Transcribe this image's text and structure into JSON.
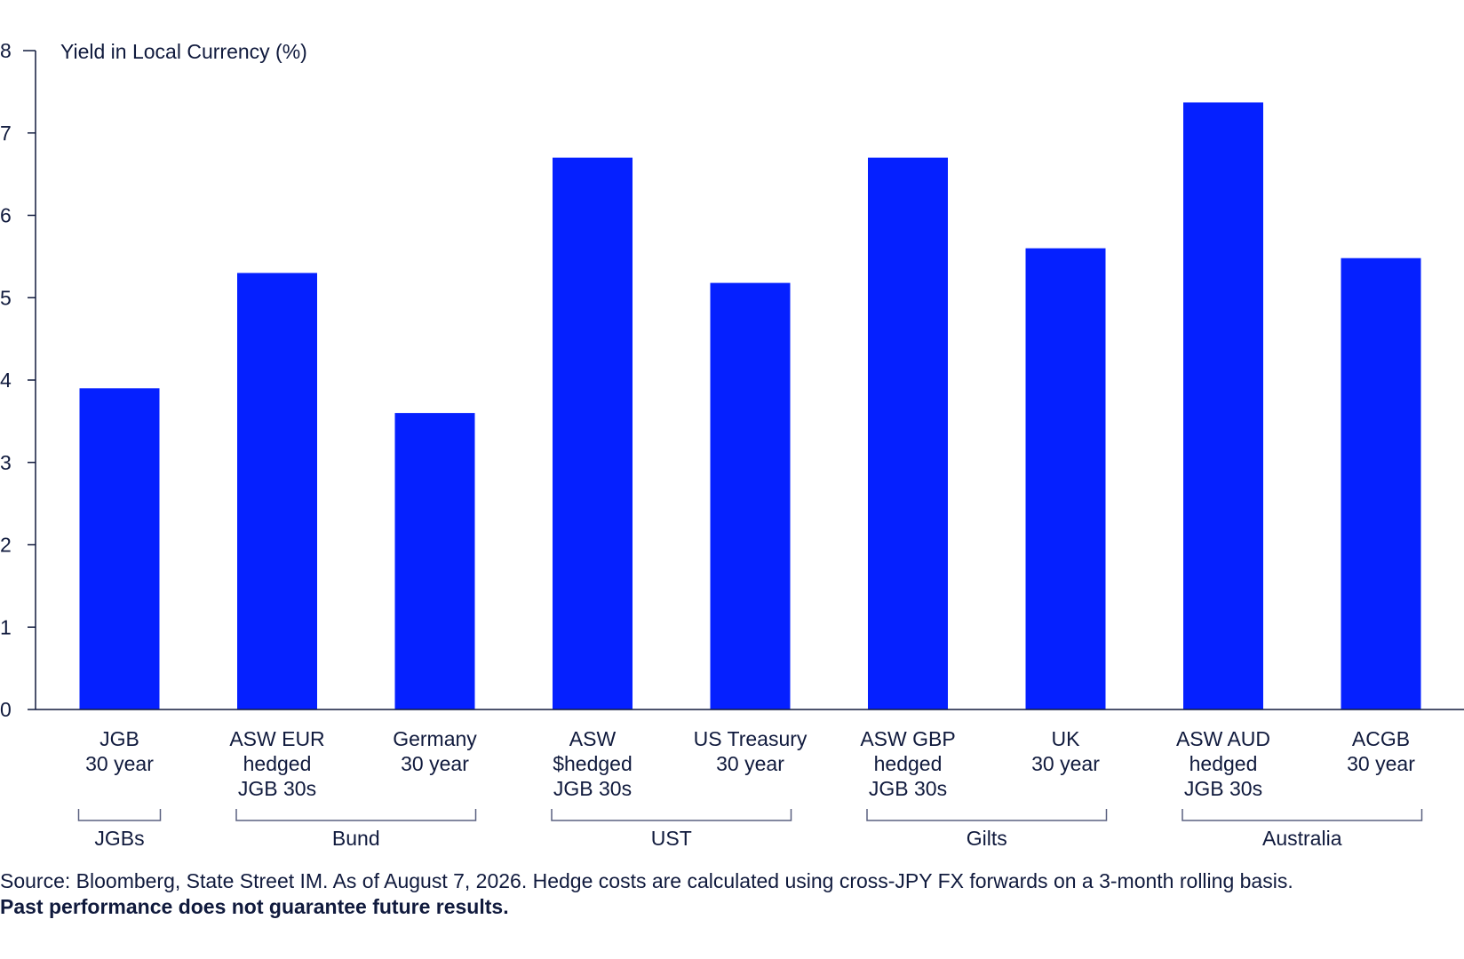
{
  "chart_data": {
    "type": "bar",
    "ylabel": "Yield in Local Currency (%)",
    "ylim": [
      0,
      8
    ],
    "yticks": [
      "0",
      "1",
      "2",
      "3",
      "4",
      "5",
      "6",
      "7",
      "8"
    ],
    "categories": [
      [
        "JGB",
        "30 year"
      ],
      [
        "ASW EUR",
        "hedged",
        "JGB 30s"
      ],
      [
        "Germany",
        "30 year"
      ],
      [
        "ASW",
        "$hedged",
        "JGB 30s"
      ],
      [
        "US Treasury",
        "30 year"
      ],
      [
        "ASW GBP",
        "hedged",
        "JGB 30s"
      ],
      [
        "UK",
        "30 year"
      ],
      [
        "ASW AUD",
        "hedged",
        "JGB 30s"
      ],
      [
        "ACGB",
        "30 year"
      ]
    ],
    "values": [
      3.9,
      5.3,
      3.6,
      6.7,
      5.18,
      6.7,
      5.6,
      7.37,
      5.48
    ],
    "groups": [
      {
        "label": "JGBs",
        "from": 0,
        "to": 0
      },
      {
        "label": "Bund",
        "from": 1,
        "to": 2
      },
      {
        "label": "UST",
        "from": 3,
        "to": 4
      },
      {
        "label": "Gilts",
        "from": 5,
        "to": 6
      },
      {
        "label": "Australia",
        "from": 7,
        "to": 8
      }
    ],
    "grid": false,
    "colors": {
      "bar": "#0520ff",
      "axis": "#101a3d",
      "bracket": "#5a6180"
    }
  },
  "footer": {
    "source": "Source: Bloomberg, State Street IM. As of August 7, 2026. Hedge costs are calculated using cross-JPY FX forwards on a 3-month rolling basis.",
    "disclaimer": "Past performance does not guarantee future results."
  }
}
